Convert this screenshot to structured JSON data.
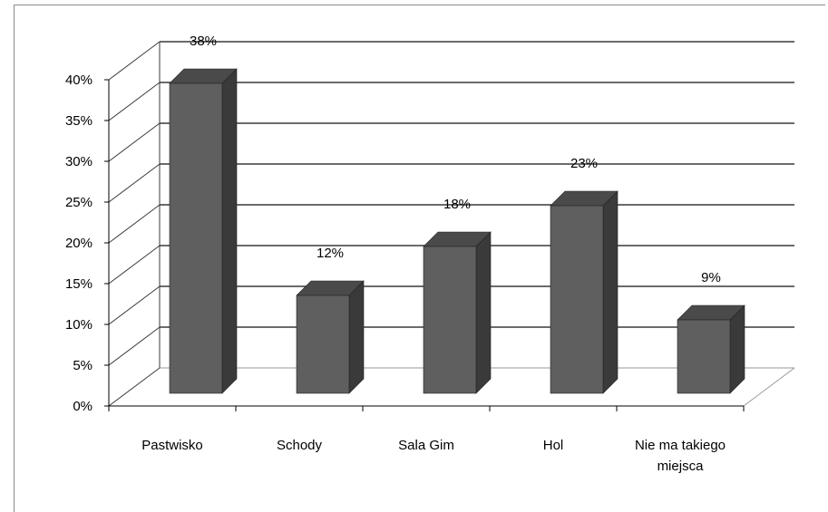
{
  "chart_data": {
    "type": "bar",
    "categories": [
      "Pastwisko",
      "Schody",
      "Sala Gim",
      "Hol",
      "Nie ma takiego miejsca"
    ],
    "category_lines": [
      [
        "Pastwisko"
      ],
      [
        "Schody"
      ],
      [
        "Sala Gim"
      ],
      [
        "Hol"
      ],
      [
        "Nie ma takiego",
        "miejsca"
      ]
    ],
    "values": [
      38,
      12,
      18,
      23,
      9
    ],
    "data_labels": [
      "38%",
      "12%",
      "18%",
      "23%",
      "9%"
    ],
    "y_ticks": [
      "0%",
      "5%",
      "10%",
      "15%",
      "20%",
      "25%",
      "30%",
      "35%",
      "40%"
    ],
    "ylim": [
      0,
      40
    ],
    "grid": true,
    "bar_color": "#5f5f5f",
    "bar_side_color": "#3a3a3a",
    "bar_top_color": "#4a4a4a",
    "grid_color": "#3a3a3a",
    "title": "",
    "xlabel": "",
    "ylabel": ""
  }
}
